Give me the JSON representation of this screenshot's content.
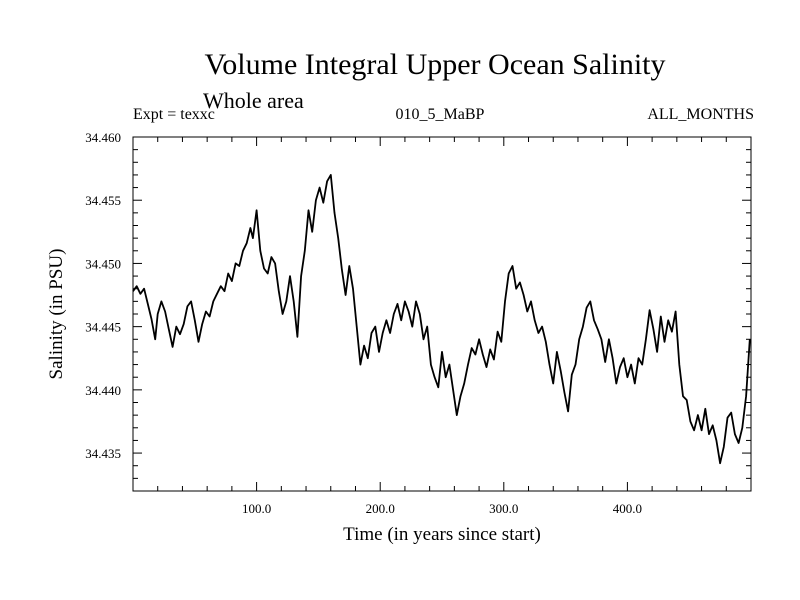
{
  "chart_data": {
    "type": "line",
    "title": "Volume Integral Upper Ocean Salinity",
    "subtitle": "Whole area",
    "header_left": "Expt = texxc",
    "header_center": "010_5_MaBP",
    "header_right": "ALL_MONTHS",
    "xlabel": "Time (in years since start)",
    "ylabel": "Salinity (in PSU)",
    "xlim": [
      0,
      500
    ],
    "ylim": [
      34.432,
      34.46
    ],
    "xticks": [
      100,
      200,
      300,
      400
    ],
    "xtick_labels": [
      "100.0",
      "200.0",
      "300.0",
      "400.0"
    ],
    "yticks": [
      34.435,
      34.44,
      34.445,
      34.45,
      34.455,
      34.46
    ],
    "ytick_labels": [
      "34.435",
      "34.440",
      "34.445",
      "34.450",
      "34.455",
      "34.460"
    ],
    "series": [
      {
        "name": "salinity",
        "x": [
          0,
          3,
          6,
          9,
          12,
          15,
          18,
          20,
          23,
          26,
          29,
          32,
          35,
          38,
          41,
          44,
          47,
          50,
          53,
          56,
          59,
          62,
          65,
          68,
          71,
          74,
          77,
          80,
          83,
          86,
          89,
          92,
          95,
          97,
          100,
          103,
          106,
          109,
          112,
          115,
          118,
          121,
          124,
          127,
          130,
          133,
          136,
          139,
          142,
          145,
          148,
          151,
          154,
          157,
          160,
          163,
          166,
          169,
          172,
          175,
          178,
          181,
          184,
          187,
          190,
          193,
          196,
          199,
          202,
          205,
          208,
          211,
          214,
          217,
          220,
          223,
          226,
          229,
          232,
          235,
          238,
          241,
          244,
          247,
          250,
          253,
          256,
          259,
          262,
          265,
          268,
          271,
          274,
          277,
          280,
          283,
          286,
          289,
          292,
          295,
          298,
          301,
          304,
          307,
          310,
          313,
          316,
          319,
          322,
          325,
          328,
          331,
          334,
          337,
          340,
          343,
          346,
          349,
          352,
          355,
          358,
          361,
          364,
          367,
          370,
          373,
          376,
          379,
          382,
          385,
          388,
          391,
          394,
          397,
          400,
          403,
          406,
          409,
          412,
          415,
          418,
          421,
          424,
          427,
          430,
          433,
          436,
          439,
          442,
          445,
          448,
          451,
          454,
          457,
          460,
          463,
          466,
          469,
          472,
          475,
          478,
          481,
          484,
          487,
          490,
          493,
          496,
          499
        ],
        "values": [
          34.4478,
          34.4482,
          34.4476,
          34.448,
          34.4468,
          34.4456,
          34.444,
          34.446,
          34.447,
          34.4462,
          34.4448,
          34.4434,
          34.445,
          34.4444,
          34.4452,
          34.4466,
          34.447,
          34.4455,
          34.4438,
          34.4452,
          34.4462,
          34.4458,
          34.447,
          34.4476,
          34.4482,
          34.4478,
          34.4492,
          34.4486,
          34.45,
          34.4498,
          34.451,
          34.4516,
          34.4528,
          34.452,
          34.4542,
          34.451,
          34.4496,
          34.4492,
          34.4505,
          34.45,
          34.4478,
          34.446,
          34.447,
          34.449,
          34.447,
          34.4442,
          34.449,
          34.451,
          34.4542,
          34.4525,
          34.455,
          34.456,
          34.4548,
          34.4565,
          34.457,
          34.454,
          34.452,
          34.4495,
          34.4475,
          34.4498,
          34.448,
          34.445,
          34.442,
          34.4435,
          34.4425,
          34.4445,
          34.445,
          34.443,
          34.4445,
          34.4455,
          34.4445,
          34.446,
          34.4468,
          34.4455,
          34.447,
          34.4462,
          34.445,
          34.447,
          34.446,
          34.444,
          34.445,
          34.442,
          34.441,
          34.4402,
          34.443,
          34.441,
          34.442,
          34.44,
          34.438,
          34.4395,
          34.4405,
          34.442,
          34.4433,
          34.4428,
          34.444,
          34.4428,
          34.4418,
          34.4432,
          34.4424,
          34.4446,
          34.4438,
          34.447,
          34.4492,
          34.4498,
          34.448,
          34.4485,
          34.4475,
          34.4462,
          34.447,
          34.4455,
          34.4445,
          34.445,
          34.4438,
          34.442,
          34.4405,
          34.443,
          34.4415,
          34.4398,
          34.4383,
          34.4412,
          34.442,
          34.444,
          34.445,
          34.4465,
          34.447,
          34.4455,
          34.4448,
          34.444,
          34.4422,
          34.444,
          34.4425,
          34.4405,
          34.4418,
          34.4425,
          34.441,
          34.442,
          34.4405,
          34.4425,
          34.442,
          34.444,
          34.4463,
          34.4448,
          34.443,
          34.4458,
          34.4438,
          34.4455,
          34.4446,
          34.4462,
          34.442,
          34.4395,
          34.4392,
          34.4375,
          34.4368,
          34.438,
          34.4368,
          34.4385,
          34.4365,
          34.4372,
          34.436,
          34.4342,
          34.4355,
          34.4378,
          34.4382,
          34.4365,
          34.4358,
          34.437,
          34.4395,
          34.444
        ]
      }
    ]
  }
}
